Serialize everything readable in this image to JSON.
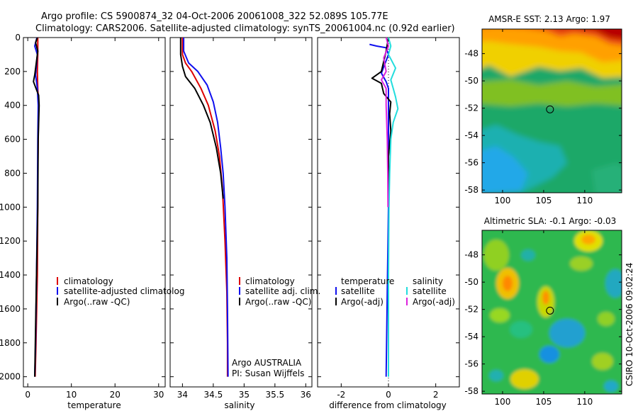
{
  "header": {
    "line1": "Argo profile: CS 5900874_32 04-Oct-2006 20061008_322 52.089S 105.77E",
    "line2": "Climatology: CARS2006. Satellite-adjusted climatology: synTS_20061004.nc (0.92d earlier)"
  },
  "colors": {
    "red": "#dd0000",
    "blue": "#1010ee",
    "black": "#000000",
    "cyan": "#22dddd",
    "magenta": "#dd22dd"
  },
  "chart_data": [
    {
      "type": "line",
      "id": "temperature",
      "xlabel": "temperature",
      "ylabel": "",
      "xlim": [
        -1,
        31.5
      ],
      "ylim": [
        2060,
        0
      ],
      "xticks": [
        0,
        10,
        20,
        30
      ],
      "xtick_labels": [
        "0",
        "10",
        "20",
        "30"
      ],
      "yticks": [
        0,
        200,
        400,
        600,
        800,
        1000,
        1200,
        1400,
        1600,
        1800,
        2000
      ],
      "ytick_labels": [
        "0",
        "200",
        "400",
        "600",
        "800",
        "1000",
        "1200",
        "1400",
        "1600",
        "1800",
        "2000"
      ],
      "series": [
        {
          "name": "climatology",
          "color": "#dd0000",
          "points": [
            [
              2.3,
              0
            ],
            [
              2.3,
              100
            ],
            [
              2.2,
              200
            ],
            [
              2.3,
              300
            ],
            [
              2.5,
              400
            ],
            [
              2.4,
              600
            ],
            [
              2.3,
              800
            ],
            [
              2.3,
              1000
            ],
            [
              2.2,
              1400
            ],
            [
              1.9,
              1800
            ],
            [
              1.7,
              2000
            ]
          ]
        },
        {
          "name": "satellite-adjusted climatology",
          "color": "#1010ee",
          "points": [
            [
              2.1,
              0
            ],
            [
              1.6,
              50
            ],
            [
              2.2,
              100
            ],
            [
              1.8,
              220
            ],
            [
              2.2,
              300
            ],
            [
              2.4,
              400
            ],
            [
              2.3,
              600
            ],
            [
              2.2,
              1000
            ],
            [
              2.0,
              1400
            ],
            [
              1.8,
              1800
            ],
            [
              1.6,
              2000
            ]
          ]
        },
        {
          "name": "Argo(..raw -QC)",
          "color": "#000000",
          "points": [
            [
              2.2,
              0
            ],
            [
              1.8,
              30
            ],
            [
              2.3,
              80
            ],
            [
              1.6,
              220
            ],
            [
              1.3,
              260
            ],
            [
              1.9,
              300
            ],
            [
              2.5,
              340
            ],
            [
              2.6,
              400
            ],
            [
              2.4,
              600
            ],
            [
              2.3,
              1000
            ],
            [
              2.0,
              1400
            ],
            [
              1.6,
              2000
            ]
          ]
        }
      ],
      "legend": [
        "climatology",
        "satellite-adjusted climatolog",
        "Argo(..raw -QC)"
      ]
    },
    {
      "type": "line",
      "id": "salinity",
      "xlabel": "salinity",
      "ylabel": "",
      "xlim": [
        33.8,
        36.1
      ],
      "ylim": [
        2060,
        0
      ],
      "xticks": [
        34,
        34.5,
        35,
        35.5,
        36
      ],
      "xtick_labels": [
        "34",
        "34.5",
        "35",
        "35.5",
        "36"
      ],
      "series": [
        {
          "name": "climatology",
          "color": "#dd0000",
          "points": [
            [
              34.0,
              0
            ],
            [
              34.0,
              100
            ],
            [
              34.05,
              150
            ],
            [
              34.15,
              200
            ],
            [
              34.3,
              300
            ],
            [
              34.42,
              400
            ],
            [
              34.53,
              550
            ],
            [
              34.6,
              700
            ],
            [
              34.65,
              900
            ],
            [
              34.69,
              1200
            ],
            [
              34.72,
              1500
            ],
            [
              34.73,
              1800
            ],
            [
              34.73,
              2000
            ]
          ]
        },
        {
          "name": "satellite adj. clim.",
          "color": "#1010ee",
          "points": [
            [
              34.02,
              0
            ],
            [
              34.02,
              80
            ],
            [
              34.1,
              150
            ],
            [
              34.25,
              200
            ],
            [
              34.4,
              280
            ],
            [
              34.5,
              380
            ],
            [
              34.57,
              500
            ],
            [
              34.62,
              650
            ],
            [
              34.66,
              800
            ],
            [
              34.69,
              1000
            ],
            [
              34.72,
              1300
            ],
            [
              34.73,
              1600
            ],
            [
              34.74,
              2000
            ]
          ]
        },
        {
          "name": "Argo(..raw -QC)",
          "color": "#000000",
          "points": [
            [
              33.97,
              0
            ],
            [
              33.97,
              100
            ],
            [
              34.0,
              170
            ],
            [
              34.05,
              230
            ],
            [
              34.2,
              300
            ],
            [
              34.34,
              400
            ],
            [
              34.45,
              500
            ],
            [
              34.55,
              650
            ],
            [
              34.62,
              800
            ],
            [
              34.66,
              950
            ]
          ]
        }
      ],
      "legend": [
        "climatology",
        "satellite adj. clim.",
        "Argo(..raw -QC)"
      ],
      "annotation": [
        "Argo AUSTRALIA",
        "PI: Susan Wijffels"
      ]
    },
    {
      "type": "line",
      "id": "difference",
      "xlabel": "difference from climatology",
      "ylabel": "",
      "xlim": [
        -3,
        3
      ],
      "ylim": [
        2060,
        0
      ],
      "xticks": [
        -2,
        0,
        2
      ],
      "xtick_labels": [
        "-2",
        "0",
        "2"
      ],
      "series": [
        {
          "name": "temperature satellite",
          "color": "#1010ee",
          "points": [
            [
              -0.8,
              40
            ],
            [
              -0.5,
              50
            ],
            [
              -0.1,
              60
            ],
            [
              0.0,
              100
            ],
            [
              -0.3,
              210
            ],
            [
              -0.1,
              260
            ],
            [
              0.0,
              300
            ],
            [
              0.0,
              600
            ],
            [
              0.0,
              1000
            ],
            [
              -0.05,
              1500
            ],
            [
              -0.1,
              2000
            ]
          ]
        },
        {
          "name": "temperature Argo(-adj)",
          "color": "#000000",
          "points": [
            [
              0.0,
              0
            ],
            [
              -0.1,
              80
            ],
            [
              -0.3,
              200
            ],
            [
              -0.7,
              240
            ],
            [
              -0.3,
              270
            ],
            [
              -0.2,
              330
            ],
            [
              0.1,
              380
            ],
            [
              0.05,
              450
            ],
            [
              0.1,
              550
            ],
            [
              0.0,
              700
            ],
            [
              0.0,
              900
            ],
            [
              0.0,
              1000
            ]
          ]
        },
        {
          "name": "salinity satellite",
          "color": "#22dddd",
          "points": [
            [
              0.0,
              0
            ],
            [
              0.1,
              50
            ],
            [
              0.0,
              100
            ],
            [
              0.3,
              180
            ],
            [
              0.1,
              250
            ],
            [
              0.2,
              300
            ],
            [
              0.3,
              350
            ],
            [
              0.4,
              420
            ],
            [
              0.2,
              500
            ],
            [
              0.1,
              600
            ],
            [
              0.05,
              800
            ],
            [
              0.02,
              1000
            ],
            [
              0.0,
              1400
            ],
            [
              0.0,
              2000
            ]
          ]
        },
        {
          "name": "salinity Argo(-adj)",
          "color": "#dd22dd",
          "points": [
            [
              -0.1,
              0
            ],
            [
              0.0,
              50
            ],
            [
              -0.2,
              120
            ],
            [
              -0.1,
              200
            ],
            [
              -0.3,
              250
            ],
            [
              -0.1,
              300
            ],
            [
              -0.1,
              400
            ],
            [
              -0.05,
              600
            ],
            [
              -0.03,
              800
            ],
            [
              -0.02,
              1000
            ]
          ]
        }
      ],
      "legend": {
        "temperature_head": "temperature",
        "salinity_head": "salinity",
        "items": [
          "satellite",
          "Argo(-adj)"
        ]
      }
    },
    {
      "type": "heatmap",
      "id": "sst",
      "title": "AMSR-E SST: 2.13 Argo: 1.97",
      "xlim": [
        97.5,
        114.5
      ],
      "ylim": [
        -58.2,
        -46.2
      ],
      "xticks": [
        100,
        105,
        110
      ],
      "xtick_labels": [
        "100",
        "105",
        "110"
      ],
      "yticks": [
        -48,
        -50,
        -52,
        -54,
        -56,
        -58
      ],
      "ytick_labels": [
        "-48",
        "-50",
        "-52",
        "-54",
        "-56",
        "-58"
      ],
      "marker": {
        "lon": 105.77,
        "lat": -52.089
      }
    },
    {
      "type": "heatmap",
      "id": "sla",
      "title": "Altimetric SLA: -0.1 Argo: -0.03",
      "xlim": [
        97.5,
        114.5
      ],
      "ylim": [
        -58.2,
        -46.2
      ],
      "xticks": [
        100,
        105,
        110
      ],
      "xtick_labels": [
        "100",
        "105",
        "110"
      ],
      "yticks": [
        -48,
        -50,
        -52,
        -54,
        -56,
        -58
      ],
      "ytick_labels": [
        "-48",
        "-50",
        "-52",
        "-54",
        "-56",
        "-58"
      ],
      "marker": {
        "lon": 105.77,
        "lat": -52.089
      }
    }
  ],
  "credit": "CSIRO 10-Oct-2006 09:02:24"
}
